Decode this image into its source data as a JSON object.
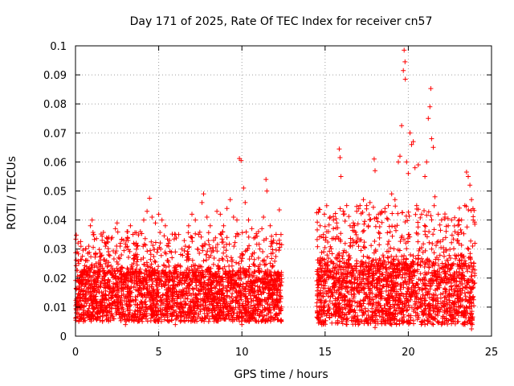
{
  "chart_data": {
    "type": "scatter",
    "title": "Day 171 of 2025, Rate Of TEC Index for receiver cn57",
    "xlabel": "GPS time / hours",
    "ylabel": "ROTI / TECUs",
    "xlim": [
      0,
      25
    ],
    "ylim": [
      0,
      0.1
    ],
    "x_ticks": [
      0,
      5,
      10,
      15,
      20,
      25
    ],
    "x_tick_labels": [
      "0",
      "5",
      "10",
      "15",
      "20",
      "25"
    ],
    "y_ticks": [
      0,
      0.01,
      0.02,
      0.03,
      0.04,
      0.05,
      0.06,
      0.07,
      0.08,
      0.09,
      0.1
    ],
    "y_tick_labels": [
      "0",
      "0.01",
      "0.02",
      "0.03",
      "0.04",
      "0.05",
      "0.06",
      "0.07",
      "0.08",
      "0.09",
      "0.1"
    ],
    "grid": true,
    "marker": "+",
    "color": "#ff0000",
    "series": [
      {
        "name": "ROTI",
        "points": [
          [
            0.05,
            0.0348
          ],
          [
            0.1,
            0.029
          ],
          [
            0.2,
            0.025
          ],
          [
            0.3,
            0.021
          ],
          [
            0.4,
            0.018
          ],
          [
            0.5,
            0.023
          ],
          [
            0.6,
            0.026
          ],
          [
            0.7,
            0.021
          ],
          [
            0.8,
            0.031
          ],
          [
            0.9,
            0.038
          ],
          [
            1.0,
            0.04
          ],
          [
            1.1,
            0.035
          ],
          [
            1.2,
            0.028
          ],
          [
            1.4,
            0.025
          ],
          [
            1.6,
            0.033
          ],
          [
            1.8,
            0.031
          ],
          [
            2.0,
            0.028
          ],
          [
            2.2,
            0.034
          ],
          [
            2.4,
            0.037
          ],
          [
            2.5,
            0.039
          ],
          [
            2.7,
            0.032
          ],
          [
            2.9,
            0.033
          ],
          [
            3.1,
            0.036
          ],
          [
            3.3,
            0.038
          ],
          [
            3.5,
            0.032
          ],
          [
            3.7,
            0.031
          ],
          [
            3.9,
            0.036
          ],
          [
            4.1,
            0.04
          ],
          [
            4.3,
            0.043
          ],
          [
            4.45,
            0.0475
          ],
          [
            4.6,
            0.041
          ],
          [
            4.8,
            0.039
          ],
          [
            5.0,
            0.042
          ],
          [
            5.2,
            0.04
          ],
          [
            5.4,
            0.038
          ],
          [
            5.6,
            0.031
          ],
          [
            5.8,
            0.027
          ],
          [
            6.0,
            0.029
          ],
          [
            6.2,
            0.035
          ],
          [
            6.4,
            0.03
          ],
          [
            6.6,
            0.031
          ],
          [
            6.8,
            0.038
          ],
          [
            7.0,
            0.042
          ],
          [
            7.2,
            0.04
          ],
          [
            7.4,
            0.035
          ],
          [
            7.6,
            0.046
          ],
          [
            7.7,
            0.049
          ],
          [
            7.9,
            0.041
          ],
          [
            8.1,
            0.038
          ],
          [
            8.3,
            0.033
          ],
          [
            8.5,
            0.043
          ],
          [
            8.7,
            0.042
          ],
          [
            8.9,
            0.038
          ],
          [
            9.1,
            0.044
          ],
          [
            9.3,
            0.047
          ],
          [
            9.5,
            0.041
          ],
          [
            9.7,
            0.04
          ],
          [
            9.85,
            0.0612
          ],
          [
            9.95,
            0.0605
          ],
          [
            10.1,
            0.051
          ],
          [
            10.2,
            0.046
          ],
          [
            10.4,
            0.04
          ],
          [
            10.6,
            0.037
          ],
          [
            10.8,
            0.034
          ],
          [
            11.0,
            0.036
          ],
          [
            11.2,
            0.037
          ],
          [
            11.3,
            0.041
          ],
          [
            11.45,
            0.054
          ],
          [
            11.5,
            0.05
          ],
          [
            11.7,
            0.038
          ],
          [
            11.9,
            0.033
          ],
          [
            12.1,
            0.032
          ],
          [
            12.25,
            0.0435
          ],
          [
            12.35,
            0.035
          ],
          [
            0.2,
            0.005
          ],
          [
            1.0,
            0.007
          ],
          [
            2.0,
            0.006
          ],
          [
            3.0,
            0.004
          ],
          [
            4.0,
            0.006
          ],
          [
            5.0,
            0.005
          ],
          [
            6.0,
            0.004
          ],
          [
            7.0,
            0.006
          ],
          [
            8.0,
            0.005
          ],
          [
            9.0,
            0.006
          ],
          [
            10.0,
            0.004
          ],
          [
            11.0,
            0.005
          ],
          [
            12.0,
            0.006
          ],
          [
            14.5,
            0.0425
          ],
          [
            14.7,
            0.038
          ],
          [
            14.9,
            0.035
          ],
          [
            15.1,
            0.036
          ],
          [
            15.3,
            0.041
          ],
          [
            15.5,
            0.04
          ],
          [
            15.7,
            0.039
          ],
          [
            15.85,
            0.0645
          ],
          [
            15.9,
            0.0615
          ],
          [
            15.95,
            0.055
          ],
          [
            16.1,
            0.042
          ],
          [
            16.3,
            0.045
          ],
          [
            16.5,
            0.038
          ],
          [
            16.7,
            0.039
          ],
          [
            16.9,
            0.043
          ],
          [
            17.1,
            0.045
          ],
          [
            17.3,
            0.047
          ],
          [
            17.5,
            0.045
          ],
          [
            17.7,
            0.046
          ],
          [
            17.95,
            0.061
          ],
          [
            18.0,
            0.057
          ],
          [
            18.2,
            0.042
          ],
          [
            18.4,
            0.043
          ],
          [
            18.6,
            0.044
          ],
          [
            18.8,
            0.045
          ],
          [
            19.0,
            0.049
          ],
          [
            19.2,
            0.047
          ],
          [
            19.4,
            0.06
          ],
          [
            19.5,
            0.062
          ],
          [
            19.6,
            0.0725
          ],
          [
            19.75,
            0.0985
          ],
          [
            19.8,
            0.0945
          ],
          [
            19.7,
            0.0915
          ],
          [
            19.82,
            0.0885
          ],
          [
            19.9,
            0.06
          ],
          [
            20.0,
            0.056
          ],
          [
            20.1,
            0.07
          ],
          [
            20.2,
            0.066
          ],
          [
            20.3,
            0.067
          ],
          [
            20.4,
            0.058
          ],
          [
            20.5,
            0.045
          ],
          [
            20.6,
            0.059
          ],
          [
            20.8,
            0.042
          ],
          [
            21.0,
            0.055
          ],
          [
            21.1,
            0.06
          ],
          [
            21.2,
            0.075
          ],
          [
            21.3,
            0.079
          ],
          [
            21.35,
            0.0853
          ],
          [
            21.4,
            0.068
          ],
          [
            21.5,
            0.065
          ],
          [
            21.6,
            0.048
          ],
          [
            21.8,
            0.042
          ],
          [
            22.0,
            0.04
          ],
          [
            22.2,
            0.041
          ],
          [
            22.4,
            0.038
          ],
          [
            22.6,
            0.04
          ],
          [
            22.8,
            0.036
          ],
          [
            23.0,
            0.035
          ],
          [
            23.2,
            0.04
          ],
          [
            23.4,
            0.045
          ],
          [
            23.5,
            0.0565
          ],
          [
            23.6,
            0.055
          ],
          [
            23.7,
            0.052
          ],
          [
            23.8,
            0.047
          ],
          [
            23.9,
            0.04
          ],
          [
            24.0,
            0.032
          ],
          [
            14.8,
            0.004
          ],
          [
            16.0,
            0.005
          ],
          [
            17.0,
            0.004
          ],
          [
            18.0,
            0.003
          ],
          [
            19.0,
            0.004
          ],
          [
            20.0,
            0.005
          ],
          [
            21.0,
            0.004
          ],
          [
            22.0,
            0.004
          ],
          [
            23.0,
            0.005
          ],
          [
            23.8,
            0.0025
          ]
        ]
      }
    ],
    "dense_bands": [
      {
        "x_range": [
          0,
          12.4
        ],
        "lower": 0.005,
        "upper": 0.022,
        "upper_tail": 0.036
      },
      {
        "x_range": [
          14.5,
          24.0
        ],
        "lower": 0.004,
        "upper": 0.025,
        "upper_tail": 0.045
      }
    ]
  }
}
